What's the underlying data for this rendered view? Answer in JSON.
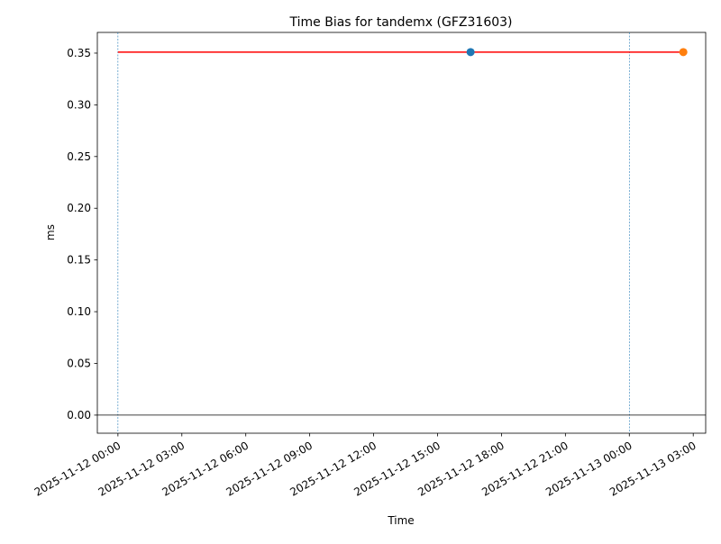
{
  "chart_data": {
    "type": "line",
    "title": "Time Bias for tandemx (GFZ31603)",
    "xlabel": "Time",
    "ylabel": "ms",
    "xlim": [
      "2025-11-11 23:02",
      "2025-11-13 03:35"
    ],
    "xticks": [
      "2025-11-12 00:00",
      "2025-11-12 03:00",
      "2025-11-12 06:00",
      "2025-11-12 09:00",
      "2025-11-12 12:00",
      "2025-11-12 15:00",
      "2025-11-12 18:00",
      "2025-11-12 21:00",
      "2025-11-13 00:00",
      "2025-11-13 03:00"
    ],
    "ylim": [
      -0.0175,
      0.37
    ],
    "yticks": [
      {
        "value": 0,
        "label": "0.00"
      },
      0.05,
      {
        "value": 0.1,
        "label": "0.10"
      },
      0.15,
      {
        "value": 0.2,
        "label": "0.20"
      },
      0.25,
      {
        "value": 0.3,
        "label": "0.30"
      },
      0.35
    ],
    "series": [
      {
        "style": "line",
        "color": "#ff0000",
        "x": [
          "2025-11-12 00:00",
          "2025-11-13 02:32"
        ],
        "values": [
          0.351,
          0.351
        ]
      },
      {
        "style": "marker",
        "color": "#1f77b4",
        "x": [
          "2025-11-12 16:33"
        ],
        "values": [
          0.351
        ]
      },
      {
        "style": "marker",
        "color": "#ff7f0e",
        "x": [
          "2025-11-13 02:32"
        ],
        "values": [
          0.351
        ]
      }
    ],
    "vlines": {
      "color": "#1f77b4",
      "x": [
        "2025-11-12 00:00",
        "2025-11-13 00:00"
      ]
    },
    "hline": {
      "color": "#000000",
      "y": 0
    }
  }
}
